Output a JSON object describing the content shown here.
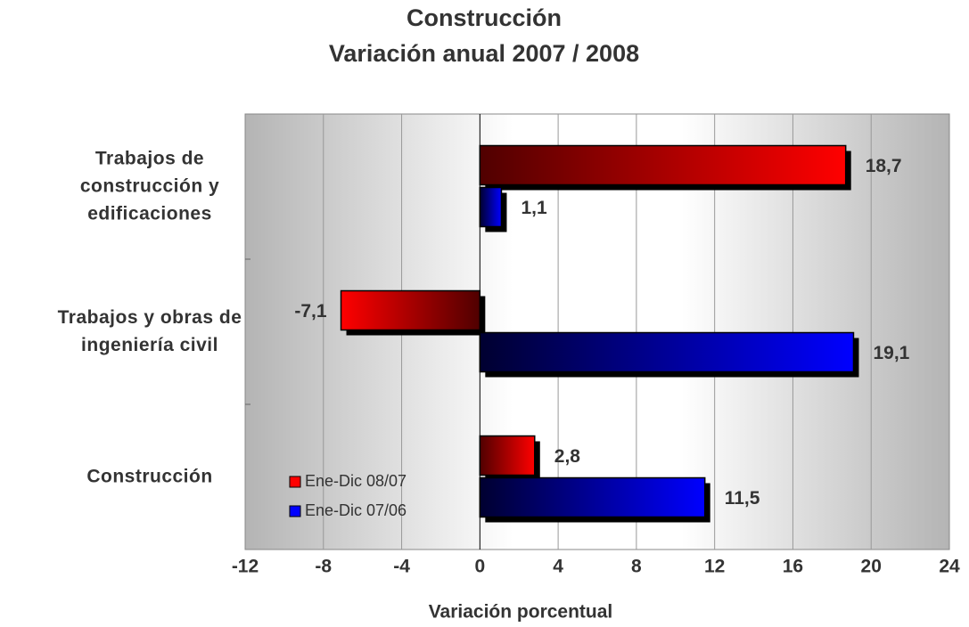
{
  "chart_data": {
    "type": "hbar",
    "title": "Construcción",
    "subtitle": "Variación anual 2007 / 2008",
    "xlabel": "Variación porcentual",
    "categories": [
      "Trabajos de construcción y edificaciones",
      "Trabajos y obras de ingeniería civil",
      "Construcción"
    ],
    "series": [
      {
        "name": "Ene-Dic 08/07",
        "color": "#ff0000",
        "values": [
          18.7,
          -7.1,
          2.8
        ],
        "value_labels": [
          "18,7",
          "-7,1",
          "2,8"
        ]
      },
      {
        "name": "Ene-Dic 07/06",
        "color": "#0000ff",
        "values": [
          1.1,
          19.1,
          11.5
        ],
        "value_labels": [
          "1,1",
          "19,1",
          "11,5"
        ]
      }
    ],
    "xlim": [
      -12,
      24
    ],
    "xticks": [
      -12,
      -8,
      -4,
      0,
      4,
      8,
      12,
      16,
      20,
      24
    ],
    "grid": true,
    "legend": "lower left"
  }
}
